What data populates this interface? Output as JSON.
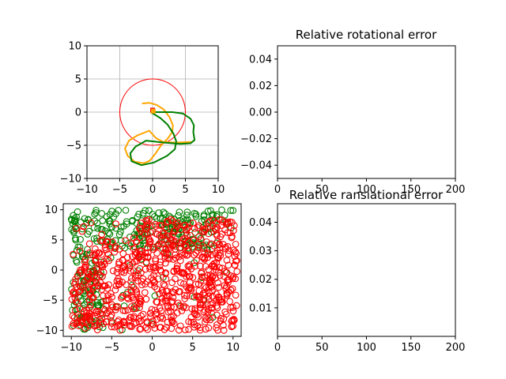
{
  "chart_data": [
    {
      "id": "trajectory",
      "type": "line",
      "title": "",
      "xlabel": "",
      "ylabel": "",
      "xlim": [
        -10,
        10
      ],
      "ylim": [
        -10,
        10
      ],
      "xticks": [
        -10,
        -5,
        0,
        5,
        10
      ],
      "yticks": [
        -10,
        -5,
        0,
        5,
        10
      ],
      "grid": true,
      "circle": {
        "cx": 0,
        "cy": 0,
        "r": 5,
        "color": "#ff0000"
      },
      "series": [
        {
          "color": "#ffa500",
          "points": [
            [
              -1.6,
              1.3
            ],
            [
              -0.5,
              1.4
            ],
            [
              0.6,
              1.1
            ],
            [
              1.7,
              0.4
            ],
            [
              2.6,
              -0.8
            ],
            [
              3.1,
              -2.0
            ],
            [
              3.0,
              -3.0
            ],
            [
              2.3,
              -4.0
            ],
            [
              1.3,
              -5.0
            ],
            [
              0.4,
              -6.3
            ],
            [
              -0.4,
              -7.3
            ],
            [
              -1.3,
              -7.7
            ],
            [
              -2.7,
              -7.5
            ],
            [
              -3.8,
              -6.6
            ],
            [
              -4.2,
              -5.5
            ],
            [
              -3.6,
              -4.3
            ],
            [
              -2.3,
              -3.5
            ],
            [
              -0.5,
              -2.8
            ],
            [
              0.5,
              -3.9
            ],
            [
              1.6,
              -4.5
            ],
            [
              3.5,
              -4.6
            ],
            [
              6.0,
              -4.5
            ]
          ]
        },
        {
          "color": "#008000",
          "points": [
            [
              -0.3,
              0.0
            ],
            [
              1.2,
              0.0
            ],
            [
              3.0,
              0.0
            ],
            [
              4.6,
              -0.2
            ],
            [
              5.8,
              -1.0
            ],
            [
              6.3,
              -2.0
            ],
            [
              6.2,
              -3.0
            ],
            [
              6.4,
              -4.2
            ],
            [
              5.8,
              -4.7
            ],
            [
              4.2,
              -4.8
            ],
            [
              1.8,
              -4.6
            ],
            [
              -1.0,
              -4.3
            ],
            [
              -2.6,
              -5.2
            ],
            [
              -3.4,
              -6.2
            ],
            [
              -3.2,
              -7.4
            ],
            [
              -1.7,
              -8.0
            ],
            [
              0.2,
              -7.6
            ],
            [
              2.2,
              -6.6
            ],
            [
              3.4,
              -5.6
            ],
            [
              3.6,
              -4.4
            ],
            [
              3.2,
              -3.3
            ],
            [
              2.3,
              -1.9
            ],
            [
              1.2,
              -0.9
            ],
            [
              0.2,
              -0.3
            ],
            [
              -0.2,
              -0.1
            ]
          ]
        }
      ],
      "markers": [
        {
          "x": 0,
          "y": 0.3,
          "color": "#ff0000",
          "shape": "square"
        },
        {
          "x": 0.1,
          "y": 0.15,
          "color": "#ffa500",
          "shape": "square"
        }
      ]
    },
    {
      "id": "rotational",
      "type": "line",
      "title": "Relative rotational error",
      "xlabel": "",
      "ylabel": "",
      "xlim": [
        0,
        200
      ],
      "ylim": [
        -0.05,
        0.05
      ],
      "xticks": [
        0,
        50,
        100,
        150,
        200
      ],
      "yticks": [
        -0.04,
        -0.02,
        0.0,
        0.02,
        0.04
      ],
      "ytick_labels": [
        "−0.04",
        "−0.02",
        "0.00",
        "0.02",
        "0.04"
      ],
      "grid": false,
      "series": []
    },
    {
      "id": "landmarks",
      "type": "scatter",
      "title": "",
      "xlabel": "",
      "ylabel": "",
      "xlim": [
        -11,
        11
      ],
      "ylim": [
        -11,
        11
      ],
      "xticks": [
        -10,
        -5,
        0,
        5,
        10
      ],
      "yticks": [
        -10,
        -5,
        0,
        5,
        10
      ],
      "grid": false,
      "marker": "hollow-circle",
      "colors": {
        "green": "#008000",
        "red": "#ff0000"
      },
      "series": [
        {
          "color": "#008000",
          "count": 360
        },
        {
          "color": "#ff0000",
          "count": 780
        }
      ]
    },
    {
      "id": "translational",
      "type": "line",
      "title": "Relative ransiational error",
      "xlabel": "",
      "ylabel": "",
      "xlim": [
        0,
        200
      ],
      "ylim": [
        0,
        0.0465
      ],
      "xticks": [
        0,
        50,
        100,
        150,
        200
      ],
      "yticks": [
        0.01,
        0.02,
        0.03,
        0.04
      ],
      "ytick_labels": [
        "0.01",
        "0.02",
        "0.03",
        "0.04"
      ],
      "grid": false,
      "series": []
    }
  ]
}
